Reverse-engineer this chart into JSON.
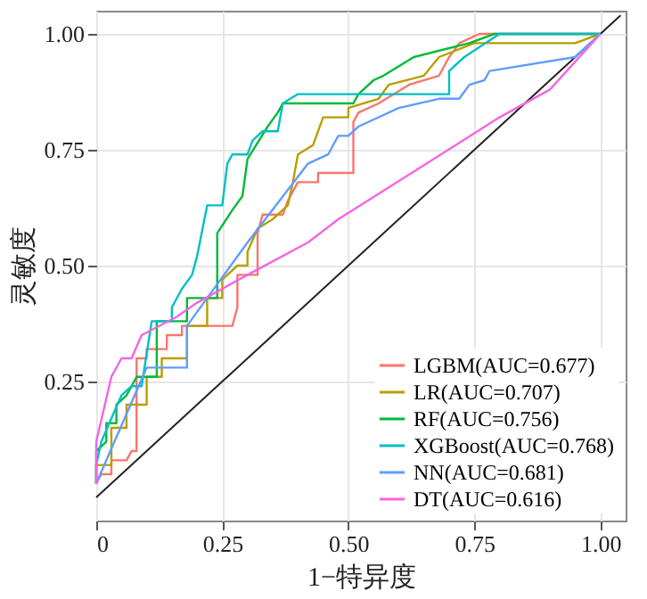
{
  "chart_data": {
    "type": "line",
    "xlabel": "1−特异度",
    "ylabel": "灵敏度",
    "xlim": [
      0,
      1.05
    ],
    "ylim": [
      -0.05,
      1.05
    ],
    "xticks": [
      {
        "value": 0,
        "label": "0"
      },
      {
        "value": 0.25,
        "label": "0.25"
      },
      {
        "value": 0.5,
        "label": "0.50"
      },
      {
        "value": 0.75,
        "label": "0.75"
      },
      {
        "value": 1,
        "label": "1.00"
      }
    ],
    "yticks": [
      {
        "value": 0.25,
        "label": "0.25"
      },
      {
        "value": 0.5,
        "label": "0.50"
      },
      {
        "value": 0.75,
        "label": "0.75"
      },
      {
        "value": 1,
        "label": "1.00"
      }
    ],
    "grid": true,
    "legend": "bottom right",
    "line_style": "solid",
    "marker": "none",
    "series": [
      {
        "name": "LGBM(AUC=0.677)",
        "color": "#f8766d",
        "x": [
          0,
          0.01,
          0.03,
          0.03,
          0.06,
          0.07,
          0.08,
          0.08,
          0.1,
          0.1,
          0.14,
          0.14,
          0.17,
          0.17,
          0.27,
          0.28,
          0.28,
          0.32,
          0.32,
          0.33,
          0.37,
          0.38,
          0.4,
          0.44,
          0.44,
          0.51,
          0.51,
          0.52,
          0.56,
          0.62,
          0.68,
          0.7,
          0.72,
          0.76,
          1
        ],
        "values": [
          0.03,
          0.05,
          0.05,
          0.08,
          0.08,
          0.1,
          0.1,
          0.3,
          0.3,
          0.32,
          0.32,
          0.35,
          0.35,
          0.37,
          0.37,
          0.41,
          0.48,
          0.48,
          0.57,
          0.61,
          0.61,
          0.64,
          0.68,
          0.68,
          0.7,
          0.7,
          0.81,
          0.83,
          0.85,
          0.89,
          0.91,
          0.95,
          0.98,
          1,
          1
        ]
      },
      {
        "name": "LR(AUC=0.707)",
        "color": "#b79f00",
        "x": [
          0,
          0,
          0.03,
          0.03,
          0.06,
          0.06,
          0.1,
          0.1,
          0.13,
          0.13,
          0.18,
          0.18,
          0.22,
          0.22,
          0.25,
          0.25,
          0.28,
          0.3,
          0.3,
          0.32,
          0.35,
          0.38,
          0.39,
          0.4,
          0.43,
          0.45,
          0.5,
          0.5,
          0.56,
          0.58,
          0.65,
          0.68,
          0.75,
          0.95,
          1
        ],
        "values": [
          0.03,
          0.07,
          0.07,
          0.15,
          0.15,
          0.2,
          0.2,
          0.26,
          0.26,
          0.3,
          0.3,
          0.37,
          0.37,
          0.43,
          0.43,
          0.47,
          0.5,
          0.5,
          0.53,
          0.58,
          0.6,
          0.63,
          0.68,
          0.74,
          0.76,
          0.82,
          0.82,
          0.84,
          0.86,
          0.89,
          0.91,
          0.95,
          0.98,
          0.98,
          1
        ]
      },
      {
        "name": "RF(AUC=0.756)",
        "color": "#00ba38",
        "x": [
          0,
          0,
          0.02,
          0.02,
          0.04,
          0.04,
          0.06,
          0.07,
          0.08,
          0.12,
          0.12,
          0.18,
          0.18,
          0.24,
          0.24,
          0.27,
          0.29,
          0.3,
          0.34,
          0.36,
          0.37,
          0.51,
          0.52,
          0.55,
          0.57,
          0.63,
          0.74,
          0.79,
          1
        ],
        "values": [
          0.03,
          0.1,
          0.12,
          0.16,
          0.16,
          0.2,
          0.22,
          0.24,
          0.26,
          0.26,
          0.38,
          0.38,
          0.43,
          0.43,
          0.57,
          0.62,
          0.65,
          0.73,
          0.8,
          0.83,
          0.85,
          0.85,
          0.87,
          0.9,
          0.91,
          0.95,
          0.98,
          1,
          1
        ]
      },
      {
        "name": "XGBoost(AUC=0.768)",
        "color": "#00bfc4",
        "x": [
          0,
          0,
          0.01,
          0.03,
          0.05,
          0.07,
          0.09,
          0.11,
          0.15,
          0.15,
          0.17,
          0.19,
          0.2,
          0.22,
          0.25,
          0.26,
          0.27,
          0.3,
          0.31,
          0.33,
          0.36,
          0.37,
          0.4,
          0.7,
          0.7,
          0.73,
          0.8,
          1
        ],
        "values": [
          0.03,
          0.07,
          0.12,
          0.17,
          0.22,
          0.24,
          0.24,
          0.38,
          0.38,
          0.41,
          0.45,
          0.48,
          0.52,
          0.63,
          0.63,
          0.72,
          0.74,
          0.74,
          0.77,
          0.79,
          0.79,
          0.85,
          0.87,
          0.87,
          0.92,
          0.95,
          1,
          1
        ]
      },
      {
        "name": "NN(AUC=0.681)",
        "color": "#619cff",
        "x": [
          0,
          0.1,
          0.18,
          0.18,
          0.22,
          0.3,
          0.42,
          0.46,
          0.48,
          0.5,
          0.52,
          0.6,
          0.68,
          0.72,
          0.74,
          0.77,
          0.78,
          0.95,
          1
        ],
        "values": [
          0.03,
          0.28,
          0.28,
          0.37,
          0.43,
          0.55,
          0.72,
          0.74,
          0.78,
          0.78,
          0.8,
          0.84,
          0.86,
          0.86,
          0.89,
          0.9,
          0.92,
          0.95,
          1
        ]
      },
      {
        "name": "DT(AUC=0.616)",
        "color": "#f564e3",
        "x": [
          0,
          0,
          0.03,
          0.05,
          0.07,
          0.09,
          0.16,
          0.2,
          0.3,
          0.42,
          0.48,
          0.8,
          0.9,
          1
        ],
        "values": [
          0.03,
          0.12,
          0.26,
          0.3,
          0.3,
          0.35,
          0.39,
          0.42,
          0.48,
          0.55,
          0.6,
          0.82,
          0.88,
          1
        ]
      },
      {
        "color": "#222222",
        "x": [
          0,
          1.04
        ],
        "values": [
          0,
          1.04
        ]
      }
    ]
  }
}
